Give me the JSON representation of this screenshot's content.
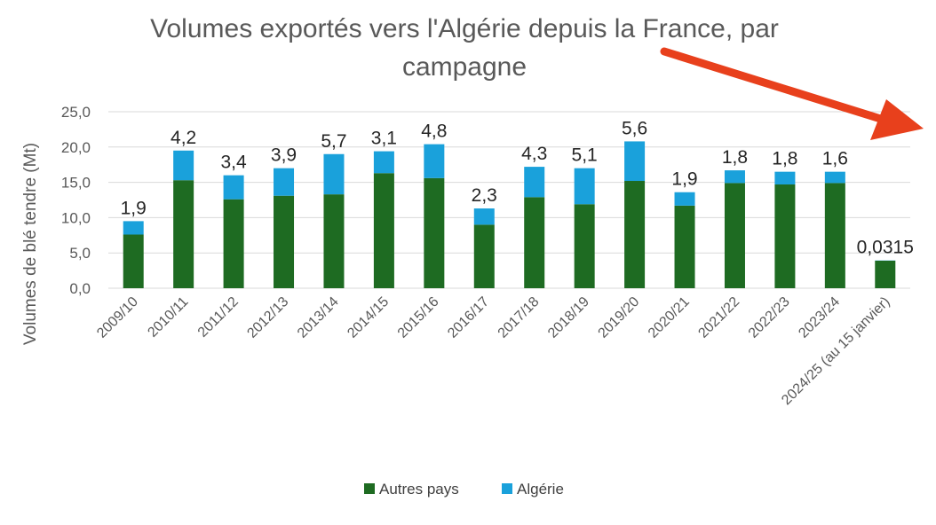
{
  "chart_data": {
    "type": "bar",
    "stacked": true,
    "title": "Volumes exportés vers l'Algérie depuis la France, par campagne",
    "title_lines": [
      "Volumes exportés vers l'Algérie depuis la France, par",
      "campagne"
    ],
    "xlabel": "",
    "ylabel": "Volumes de blé tendre (Mt)",
    "ylim": [
      0,
      25
    ],
    "yticks": [
      "0,0",
      "5,0",
      "10,0",
      "15,0",
      "20,0",
      "25,0"
    ],
    "grid": true,
    "legend_position": "bottom",
    "categories": [
      "2009/10",
      "2010/11",
      "2011/12",
      "2012/13",
      "2013/14",
      "2014/15",
      "2015/16",
      "2016/17",
      "2017/18",
      "2018/19",
      "2019/20",
      "2020/21",
      "2021/22",
      "2022/23",
      "2023/24",
      "2024/25 (au 15 janvier)"
    ],
    "series": [
      {
        "name": "Autres pays",
        "color": "#1e6b22",
        "values": [
          7.6,
          15.3,
          12.6,
          13.1,
          13.3,
          16.3,
          15.6,
          9.0,
          12.9,
          11.9,
          15.2,
          11.7,
          14.9,
          14.7,
          14.9,
          3.9
        ]
      },
      {
        "name": "Algérie",
        "color": "#1aa1db",
        "values": [
          1.9,
          4.2,
          3.4,
          3.9,
          5.7,
          3.1,
          4.8,
          2.3,
          4.3,
          5.1,
          5.6,
          1.9,
          1.8,
          1.8,
          1.6,
          0.0315
        ]
      }
    ],
    "data_labels": [
      "1,9",
      "4,2",
      "3,4",
      "3,9",
      "5,7",
      "3,1",
      "4,8",
      "2,3",
      "4,3",
      "5,1",
      "5,6",
      "1,9",
      "1,8",
      "1,8",
      "1,6",
      "0,0315"
    ]
  },
  "colors": {
    "arrow": "#e8401c",
    "grid": "#d9d9d9",
    "axis_text": "#595959"
  },
  "annotation": {
    "icon": "red-arrow-icon"
  }
}
